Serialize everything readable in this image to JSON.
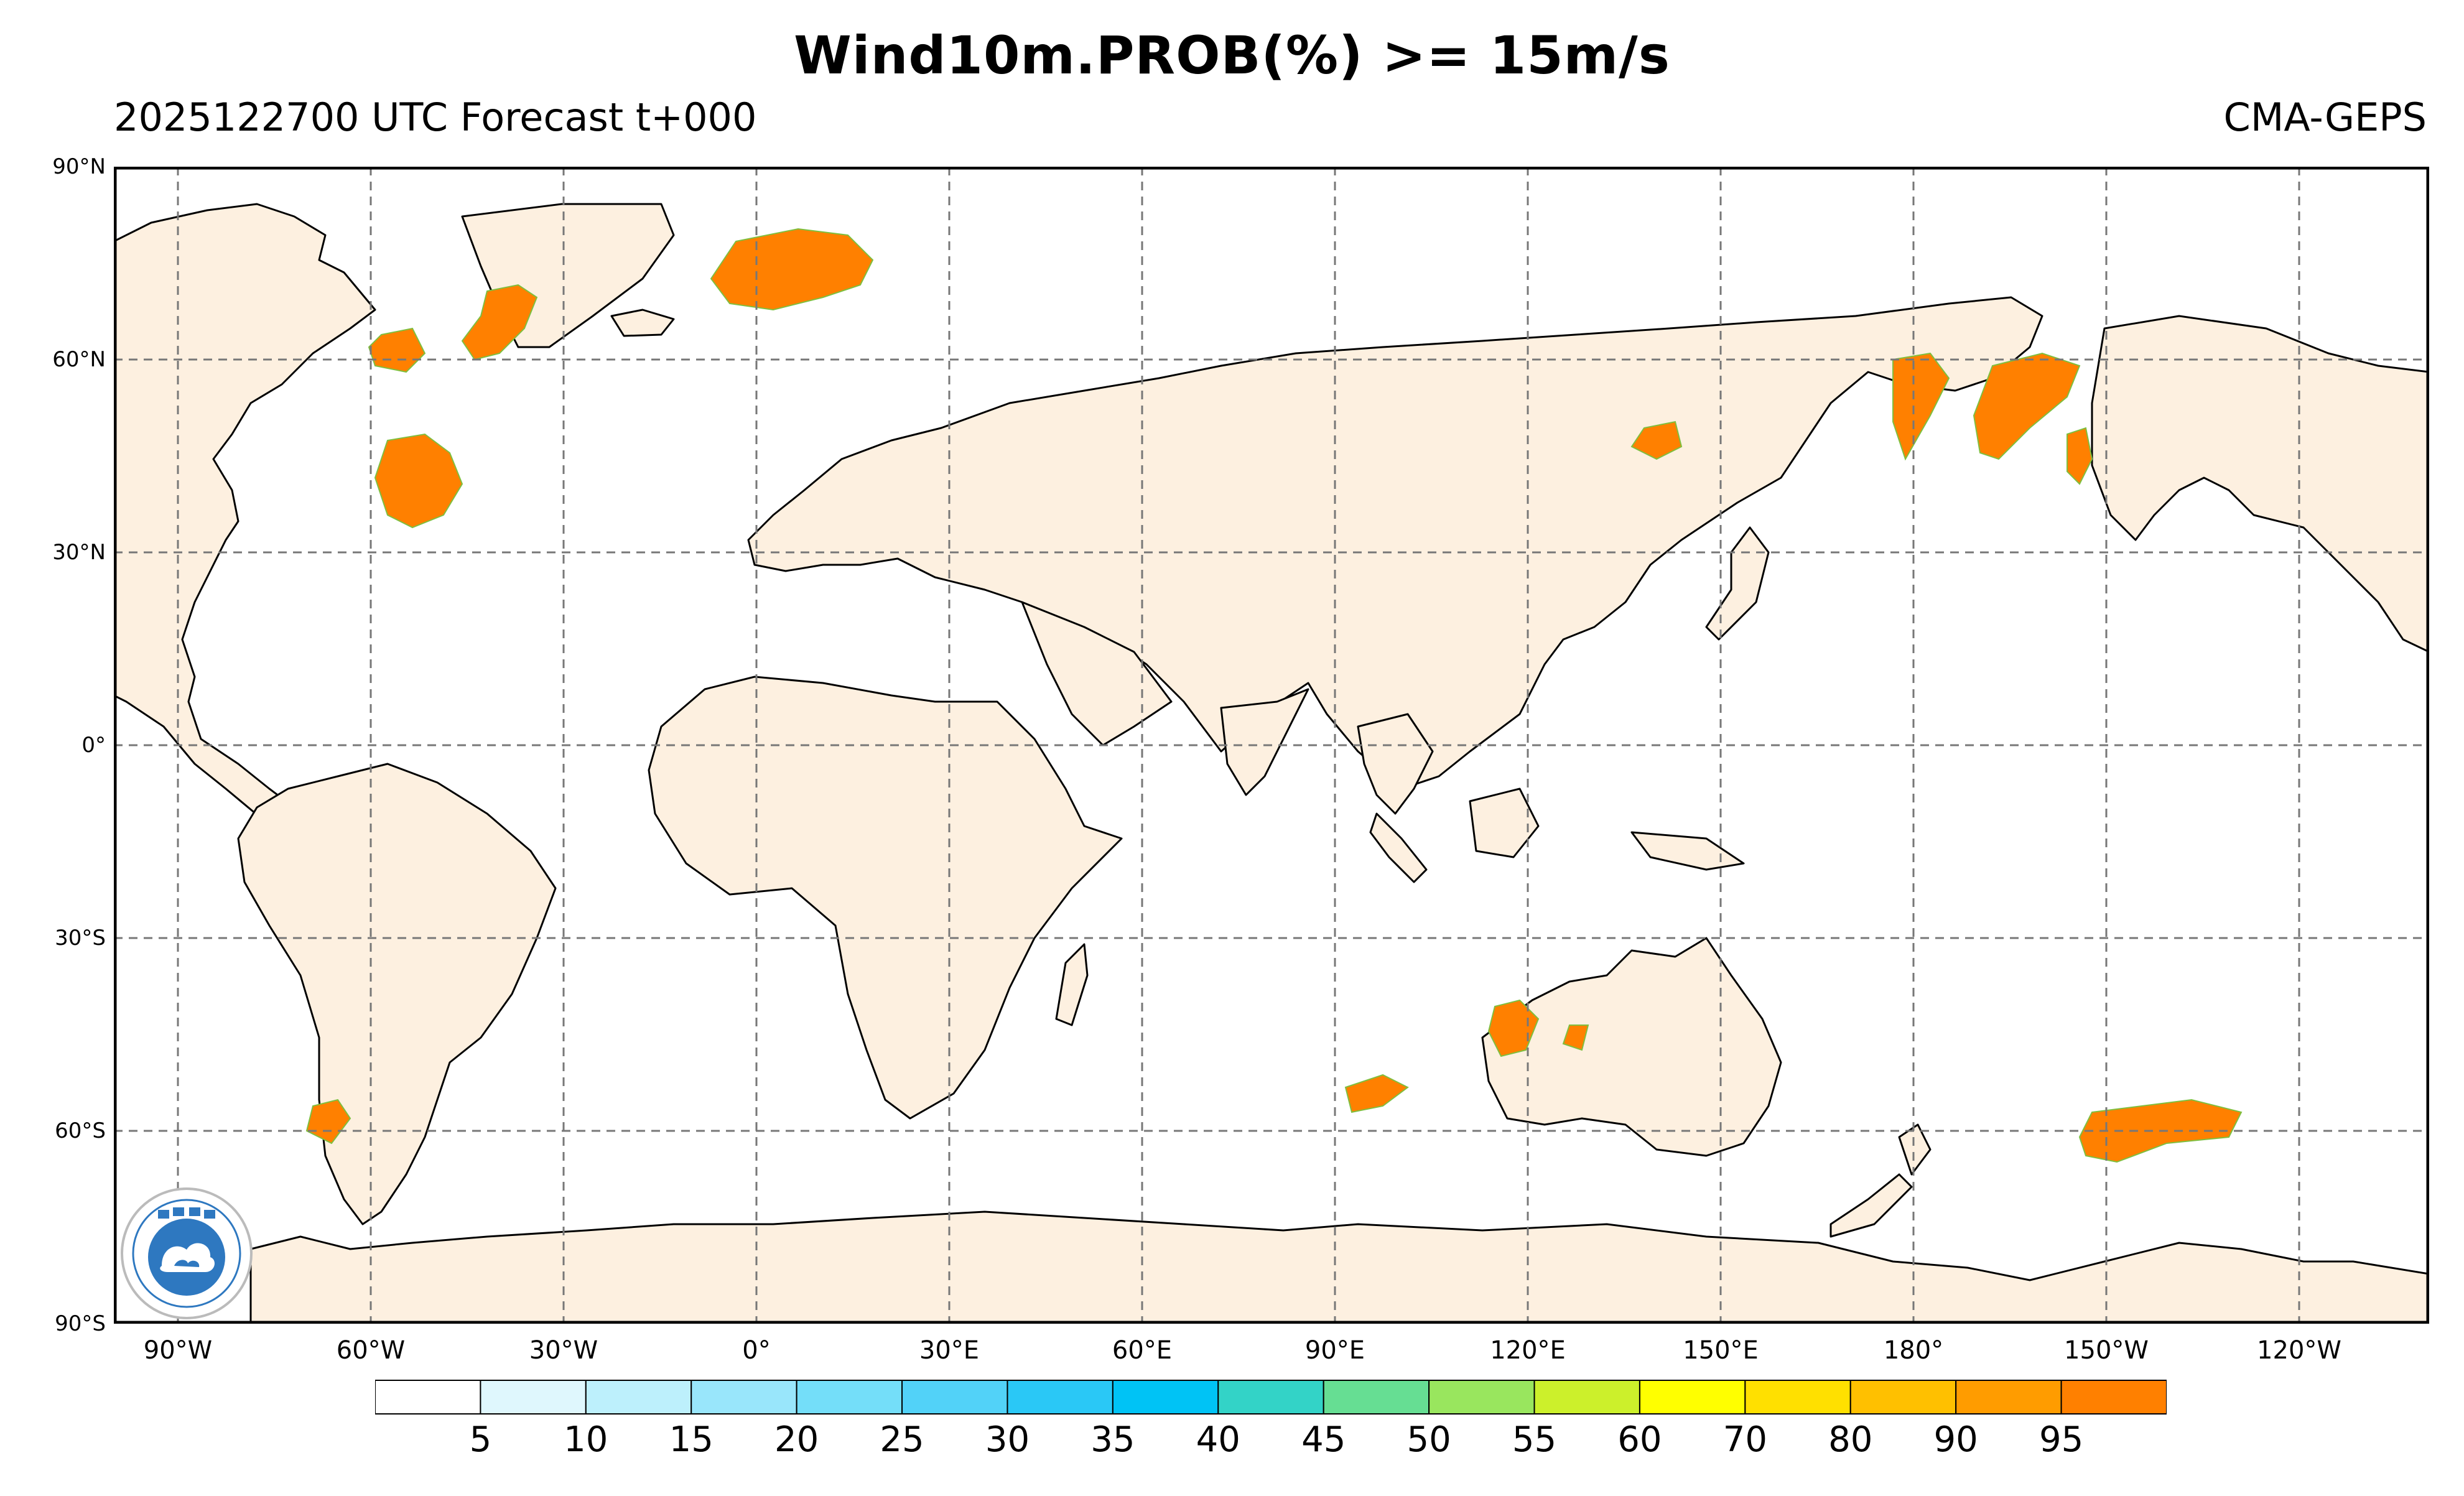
{
  "title": "Wind10m.PROB(%) >= 15m/s",
  "subtitle_left": "2025122700 UTC Forecast t+000",
  "subtitle_right": "CMA-GEPS",
  "lat_labels": [
    "90°N",
    "60°N",
    "30°N",
    "0°",
    "30°S",
    "60°S",
    "90°S"
  ],
  "lon_labels": [
    "90°W",
    "60°W",
    "30°W",
    "0°",
    "30°E",
    "60°E",
    "90°E",
    "120°E",
    "150°E",
    "180°",
    "150°W",
    "120°W"
  ],
  "legend": {
    "labels": [
      "5",
      "10",
      "15",
      "20",
      "25",
      "30",
      "35",
      "40",
      "45",
      "50",
      "55",
      "60",
      "70",
      "80",
      "90",
      "95"
    ],
    "colors": [
      "#ffffff",
      "#dff7fd",
      "#bdf0fc",
      "#99e6fb",
      "#74def9",
      "#52d2f8",
      "#2ac8f6",
      "#00c3f5",
      "#33d3c7",
      "#66de93",
      "#99e65e",
      "#ccf02b",
      "#ffff00",
      "#ffe000",
      "#ffc000",
      "#ff9c00",
      "#ff8000"
    ]
  },
  "colors": {
    "land": "#fdf0e0",
    "ocean": "#ffffff",
    "prob_high": "#ff8000",
    "grid": "#777777",
    "logo_blue": "#2e78c0"
  }
}
